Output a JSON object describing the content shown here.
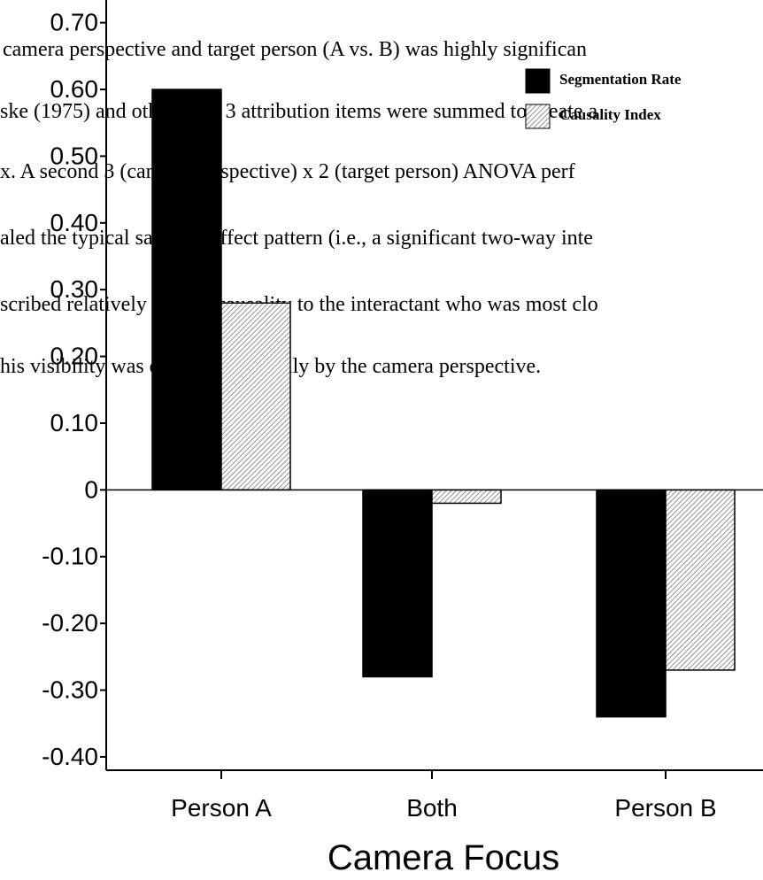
{
  "chart_data": {
    "type": "bar",
    "xlabel": "Camera Focus",
    "categories": [
      "Person A",
      "Both",
      "Person B"
    ],
    "series": [
      {
        "name": "Segmentation Rate",
        "color": "#000000",
        "values": [
          0.6,
          -0.28,
          -0.34
        ]
      },
      {
        "name": "Causality Index",
        "color": "hatched",
        "values": [
          0.28,
          -0.02,
          -0.27
        ]
      }
    ],
    "ylim": [
      -0.42,
      0.73
    ],
    "yticks": [
      {
        "value": -0.4,
        "label": "-0.40"
      },
      {
        "value": -0.3,
        "label": "-0.30"
      },
      {
        "value": -0.2,
        "label": "-0.20"
      },
      {
        "value": -0.1,
        "label": "-0.10"
      },
      0,
      {
        "value": 0.1,
        "label": "0.10"
      },
      {
        "value": 0.2,
        "label": "0.20"
      },
      {
        "value": 0.3,
        "label": "0.30"
      },
      {
        "value": 0.4,
        "label": "0.40"
      },
      {
        "value": 0.5,
        "label": "0.50"
      },
      {
        "value": 0.6,
        "label": "0.60"
      },
      {
        "value": 0.7,
        "label": "0.70"
      }
    ],
    "legend": "top-right",
    "background_text": [
      "camera perspective and target person (A vs. B) was highly significan",
      "ske (1975) and others, the 3 attribution items were summed to create a",
      "x.  A second 3 (camera perspective) x 2 (target person) ANOVA perf",
      "aled the typical salience-effect pattern (i.e., a significant two-way inte",
      "scribed relatively greater causality to the interactant who was most clo",
      "his visibility was determined wholly by the camera perspective."
    ]
  }
}
